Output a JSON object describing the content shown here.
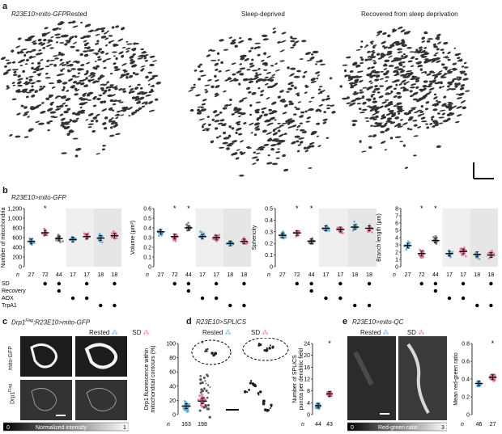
{
  "panel_a": {
    "label": "a",
    "genotype": "R23E10>mito-GFP",
    "conditions": [
      "Rested",
      "Sleep-deprived",
      "Recovered from sleep deprivation"
    ]
  },
  "panel_b": {
    "label": "b",
    "genotype": "R23E10>mito-GFP",
    "n_label": "n",
    "n_values": [
      "27",
      "72",
      "44",
      "17",
      "17",
      "18",
      "18"
    ],
    "row_labels": [
      "SD",
      "Recovery",
      "AOX",
      "TrpA1"
    ],
    "dots": {
      "SD": [
        false,
        true,
        true,
        false,
        true,
        false,
        true
      ],
      "Recovery": [
        false,
        false,
        true,
        false,
        false,
        false,
        false
      ],
      "AOX": [
        false,
        false,
        false,
        true,
        true,
        false,
        false
      ],
      "TrpA1": [
        false,
        false,
        false,
        false,
        false,
        true,
        true
      ]
    },
    "colors": {
      "rested": "#5aa9d6",
      "sd": "#e8718f",
      "recovery": "#7a7a7a",
      "shade": "#e6e6e6",
      "mean": "#000000"
    }
  },
  "panel_c": {
    "label": "c",
    "genotype": "Drp1^Flag;R23E10>mito-GFP",
    "genotype_pre": "Drp1",
    "genotype_sup": "Flag",
    "genotype_post": ";R23E10>mito-GFP",
    "legend": [
      "Rested",
      "SD"
    ],
    "row_labels": [
      "mito-GFP",
      "Drp1"
    ],
    "row2_sup": "Flag",
    "colorbar": {
      "min": "0",
      "label": "Normalized intensity",
      "max": "1"
    },
    "n_label": "n",
    "n_values": [
      "163",
      "198"
    ]
  },
  "panel_d": {
    "label": "d",
    "genotype": "R23E10>SPLICS",
    "legend": [
      "Rested",
      "SD"
    ],
    "n_label": "n",
    "n_values": [
      "44",
      "43"
    ]
  },
  "panel_e": {
    "label": "e",
    "genotype": "R23E10>mito-QC",
    "legend": [
      "Rested",
      "SD"
    ],
    "colorbar": {
      "min": "0",
      "label": "Red-green ratio",
      "max": "3"
    },
    "n_label": "n",
    "n_values": [
      "46",
      "27"
    ]
  },
  "chart_data": [
    {
      "type": "scatter",
      "panel": "b",
      "ylabel": "Number of mitochondria",
      "ylim": [
        0,
        1200
      ],
      "yticks": [
        "0",
        "200",
        "400",
        "600",
        "800",
        "1,000",
        "1,200"
      ],
      "groups": [
        "Rested",
        "SD",
        "Recovery",
        "AOX",
        "AOX SD",
        "TrpA1",
        "TrpA1 SD"
      ],
      "means": [
        520,
        700,
        580,
        560,
        620,
        590,
        640
      ],
      "significance": [
        "",
        "*",
        "",
        "",
        "",
        "",
        ""
      ]
    },
    {
      "type": "scatter",
      "panel": "b",
      "ylabel": "Volume (μm³)",
      "ylim": [
        0,
        0.6
      ],
      "yticks": [
        "0",
        "0.1",
        "0.2",
        "0.3",
        "0.4",
        "0.5",
        "0.6"
      ],
      "groups": [
        "Rested",
        "SD",
        "Recovery",
        "AOX",
        "AOX SD",
        "TrpA1",
        "TrpA1 SD"
      ],
      "means": [
        0.36,
        0.31,
        0.4,
        0.31,
        0.3,
        0.24,
        0.26
      ],
      "significance": [
        "",
        "*",
        "*",
        "",
        "",
        "",
        ""
      ]
    },
    {
      "type": "scatter",
      "panel": "b",
      "ylabel": "Sphericity",
      "ylim": [
        0,
        0.5
      ],
      "yticks": [
        "0",
        "0.1",
        "0.2",
        "0.3",
        "0.4",
        "0.5"
      ],
      "groups": [
        "Rested",
        "SD",
        "Recovery",
        "AOX",
        "AOX SD",
        "TrpA1",
        "TrpA1 SD"
      ],
      "means": [
        0.27,
        0.29,
        0.22,
        0.33,
        0.32,
        0.34,
        0.33
      ],
      "significance": [
        "",
        "*",
        "*",
        "",
        "",
        "",
        ""
      ]
    },
    {
      "type": "scatter",
      "panel": "b",
      "ylabel": "Branch length (μm)",
      "ylim": [
        0,
        8
      ],
      "yticks": [
        "0",
        "1",
        "2",
        "3",
        "4",
        "5",
        "6",
        "7",
        "8"
      ],
      "groups": [
        "Rested",
        "SD",
        "Recovery",
        "AOX",
        "AOX SD",
        "TrpA1",
        "TrpA1 SD"
      ],
      "means": [
        2.9,
        1.8,
        3.6,
        1.8,
        2.1,
        1.7,
        1.6
      ],
      "significance": [
        "",
        "*",
        "*",
        "",
        "",
        "",
        ""
      ]
    },
    {
      "type": "scatter",
      "panel": "c",
      "ylabel": "Drp1 fluorescence within mitochondrial contours (%)",
      "ylim": [
        0,
        100
      ],
      "yticks": [
        "0",
        "20",
        "40",
        "60",
        "80",
        "100"
      ],
      "groups": [
        "Rested",
        "SD"
      ],
      "means": [
        12,
        19
      ],
      "significance": [
        "",
        "*"
      ]
    },
    {
      "type": "scatter",
      "panel": "d",
      "ylabel": "Number of SPLICS puncta per dendritic field",
      "ylim": [
        0,
        24
      ],
      "yticks": [
        "0",
        "4",
        "8",
        "12",
        "16",
        "20",
        "24"
      ],
      "groups": [
        "Rested",
        "SD"
      ],
      "means": [
        3,
        7
      ],
      "significance": [
        "",
        "*"
      ]
    },
    {
      "type": "scatter",
      "panel": "e",
      "ylabel": "Mean red-green ratio",
      "ylim": [
        0,
        0.8
      ],
      "yticks": [
        "0",
        "0.2",
        "0.4",
        "0.6",
        "0.8"
      ],
      "groups": [
        "Rested",
        "SD"
      ],
      "means": [
        0.35,
        0.42
      ],
      "significance": [
        "",
        "*"
      ]
    }
  ]
}
